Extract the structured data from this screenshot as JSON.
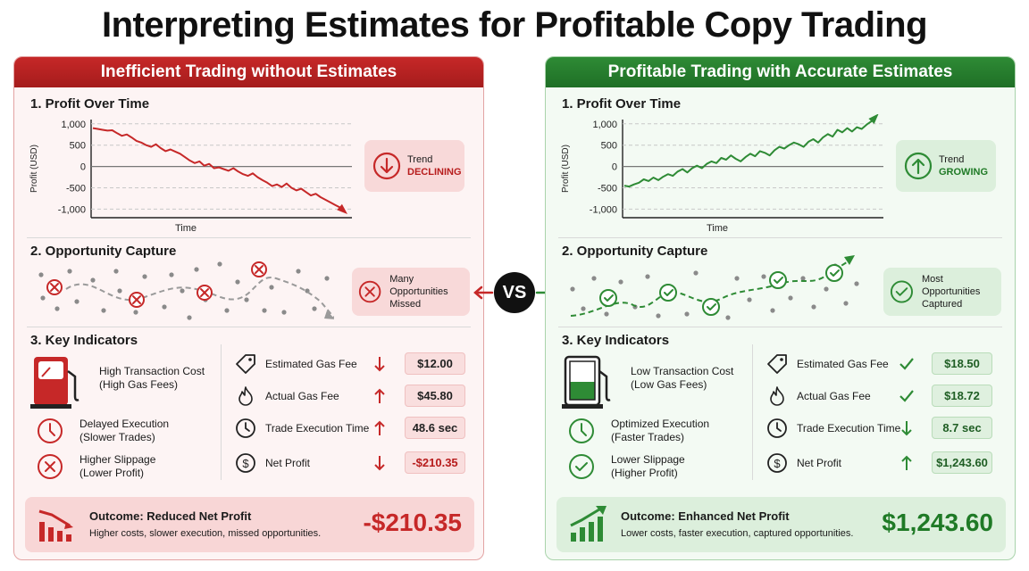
{
  "title": "Interpreting Estimates for Profitable Copy Trading",
  "vs_label": "VS",
  "left": {
    "heading": "Inefficient Trading without Estimates",
    "section1": "1. Profit Over Time",
    "section2": "2. Opportunity Capture",
    "section3": "3. Key Indicators",
    "trend_label": "Trend",
    "trend_status": "DECLINING",
    "opportunity_line1": "Many Opportunities",
    "opportunity_line2": "Missed",
    "indicators": [
      {
        "title": "High Transaction Cost",
        "subtitle": "(High Gas Fees)"
      },
      {
        "title": "Delayed Execution",
        "subtitle": "(Slower Trades)"
      },
      {
        "title": "Higher Slippage",
        "subtitle": "(Lower Profit)"
      }
    ],
    "metrics": [
      {
        "label": "Estimated Gas Fee",
        "value": "$12.00"
      },
      {
        "label": "Actual Gas Fee",
        "value": "$45.80"
      },
      {
        "label": "Trade Execution Time",
        "value": "48.6 sec"
      },
      {
        "label": "Net Profit",
        "value": "-$210.35"
      }
    ],
    "outcome_title": "Outcome: Reduced Net Profit",
    "outcome_sub": "Higher costs, slower execution, missed opportunities.",
    "outcome_value": "-$210.35"
  },
  "right": {
    "heading": "Profitable Trading with Accurate Estimates",
    "section1": "1. Profit Over Time",
    "section2": "2. Opportunity Capture",
    "section3": "3. Key Indicators",
    "trend_label": "Trend",
    "trend_status": "GROWING",
    "opportunity_line1": "Most Opportunities",
    "opportunity_line2": "Captured",
    "indicators": [
      {
        "title": "Low Transaction Cost",
        "subtitle": "(Low Gas Fees)"
      },
      {
        "title": "Optimized Execution",
        "subtitle": "(Faster Trades)"
      },
      {
        "title": "Lower Slippage",
        "subtitle": "(Higher Profit)"
      }
    ],
    "metrics": [
      {
        "label": "Estimated Gas Fee",
        "value": "$18.50"
      },
      {
        "label": "Actual Gas Fee",
        "value": "$18.72"
      },
      {
        "label": "Trade Execution Time",
        "value": "8.7 sec"
      },
      {
        "label": "Net Profit",
        "value": "$1,243.60"
      }
    ],
    "outcome_title": "Outcome: Enhanced Net Profit",
    "outcome_sub": "Lower costs, faster execution, captured opportunities.",
    "outcome_value": "$1,243.60"
  },
  "colors": {
    "red": "#c62828",
    "green": "#2e8b35"
  },
  "chart_data": [
    {
      "type": "line",
      "xlabel": "Time",
      "ylabel": "Profit (USD)",
      "yticks": [
        "1,000",
        "500",
        "0",
        "-500",
        "-1,000"
      ],
      "ylim": [
        -1200,
        1100
      ],
      "series": [
        {
          "values": [
            900,
            880,
            860,
            840,
            850,
            780,
            720,
            750,
            680,
            600,
            560,
            500,
            460,
            520,
            430,
            360,
            400,
            350,
            300,
            220,
            140,
            80,
            120,
            20,
            60,
            -40,
            -20,
            -60,
            -100,
            -40,
            -120,
            -180,
            -220,
            -160,
            -250,
            -320,
            -380,
            -460,
            -420,
            -480,
            -400,
            -500,
            -560,
            -520,
            -600,
            -680,
            -640,
            -720,
            -780,
            -840,
            -900,
            -960,
            -1060
          ]
        }
      ]
    },
    {
      "type": "line",
      "xlabel": "Time",
      "ylabel": "Profit (USD)",
      "yticks": [
        "1,000",
        "500",
        "0",
        "-500",
        "-1,000"
      ],
      "ylim": [
        -1200,
        1100
      ],
      "series": [
        {
          "values": [
            -450,
            -470,
            -420,
            -380,
            -300,
            -340,
            -260,
            -320,
            -240,
            -180,
            -220,
            -120,
            -60,
            -140,
            -40,
            20,
            -40,
            60,
            120,
            80,
            200,
            160,
            260,
            180,
            120,
            220,
            300,
            240,
            360,
            320,
            260,
            380,
            460,
            420,
            500,
            560,
            520,
            460,
            580,
            640,
            560,
            680,
            760,
            700,
            860,
            800,
            900,
            820,
            920,
            880,
            980,
            1060,
            1180
          ]
        }
      ]
    }
  ]
}
